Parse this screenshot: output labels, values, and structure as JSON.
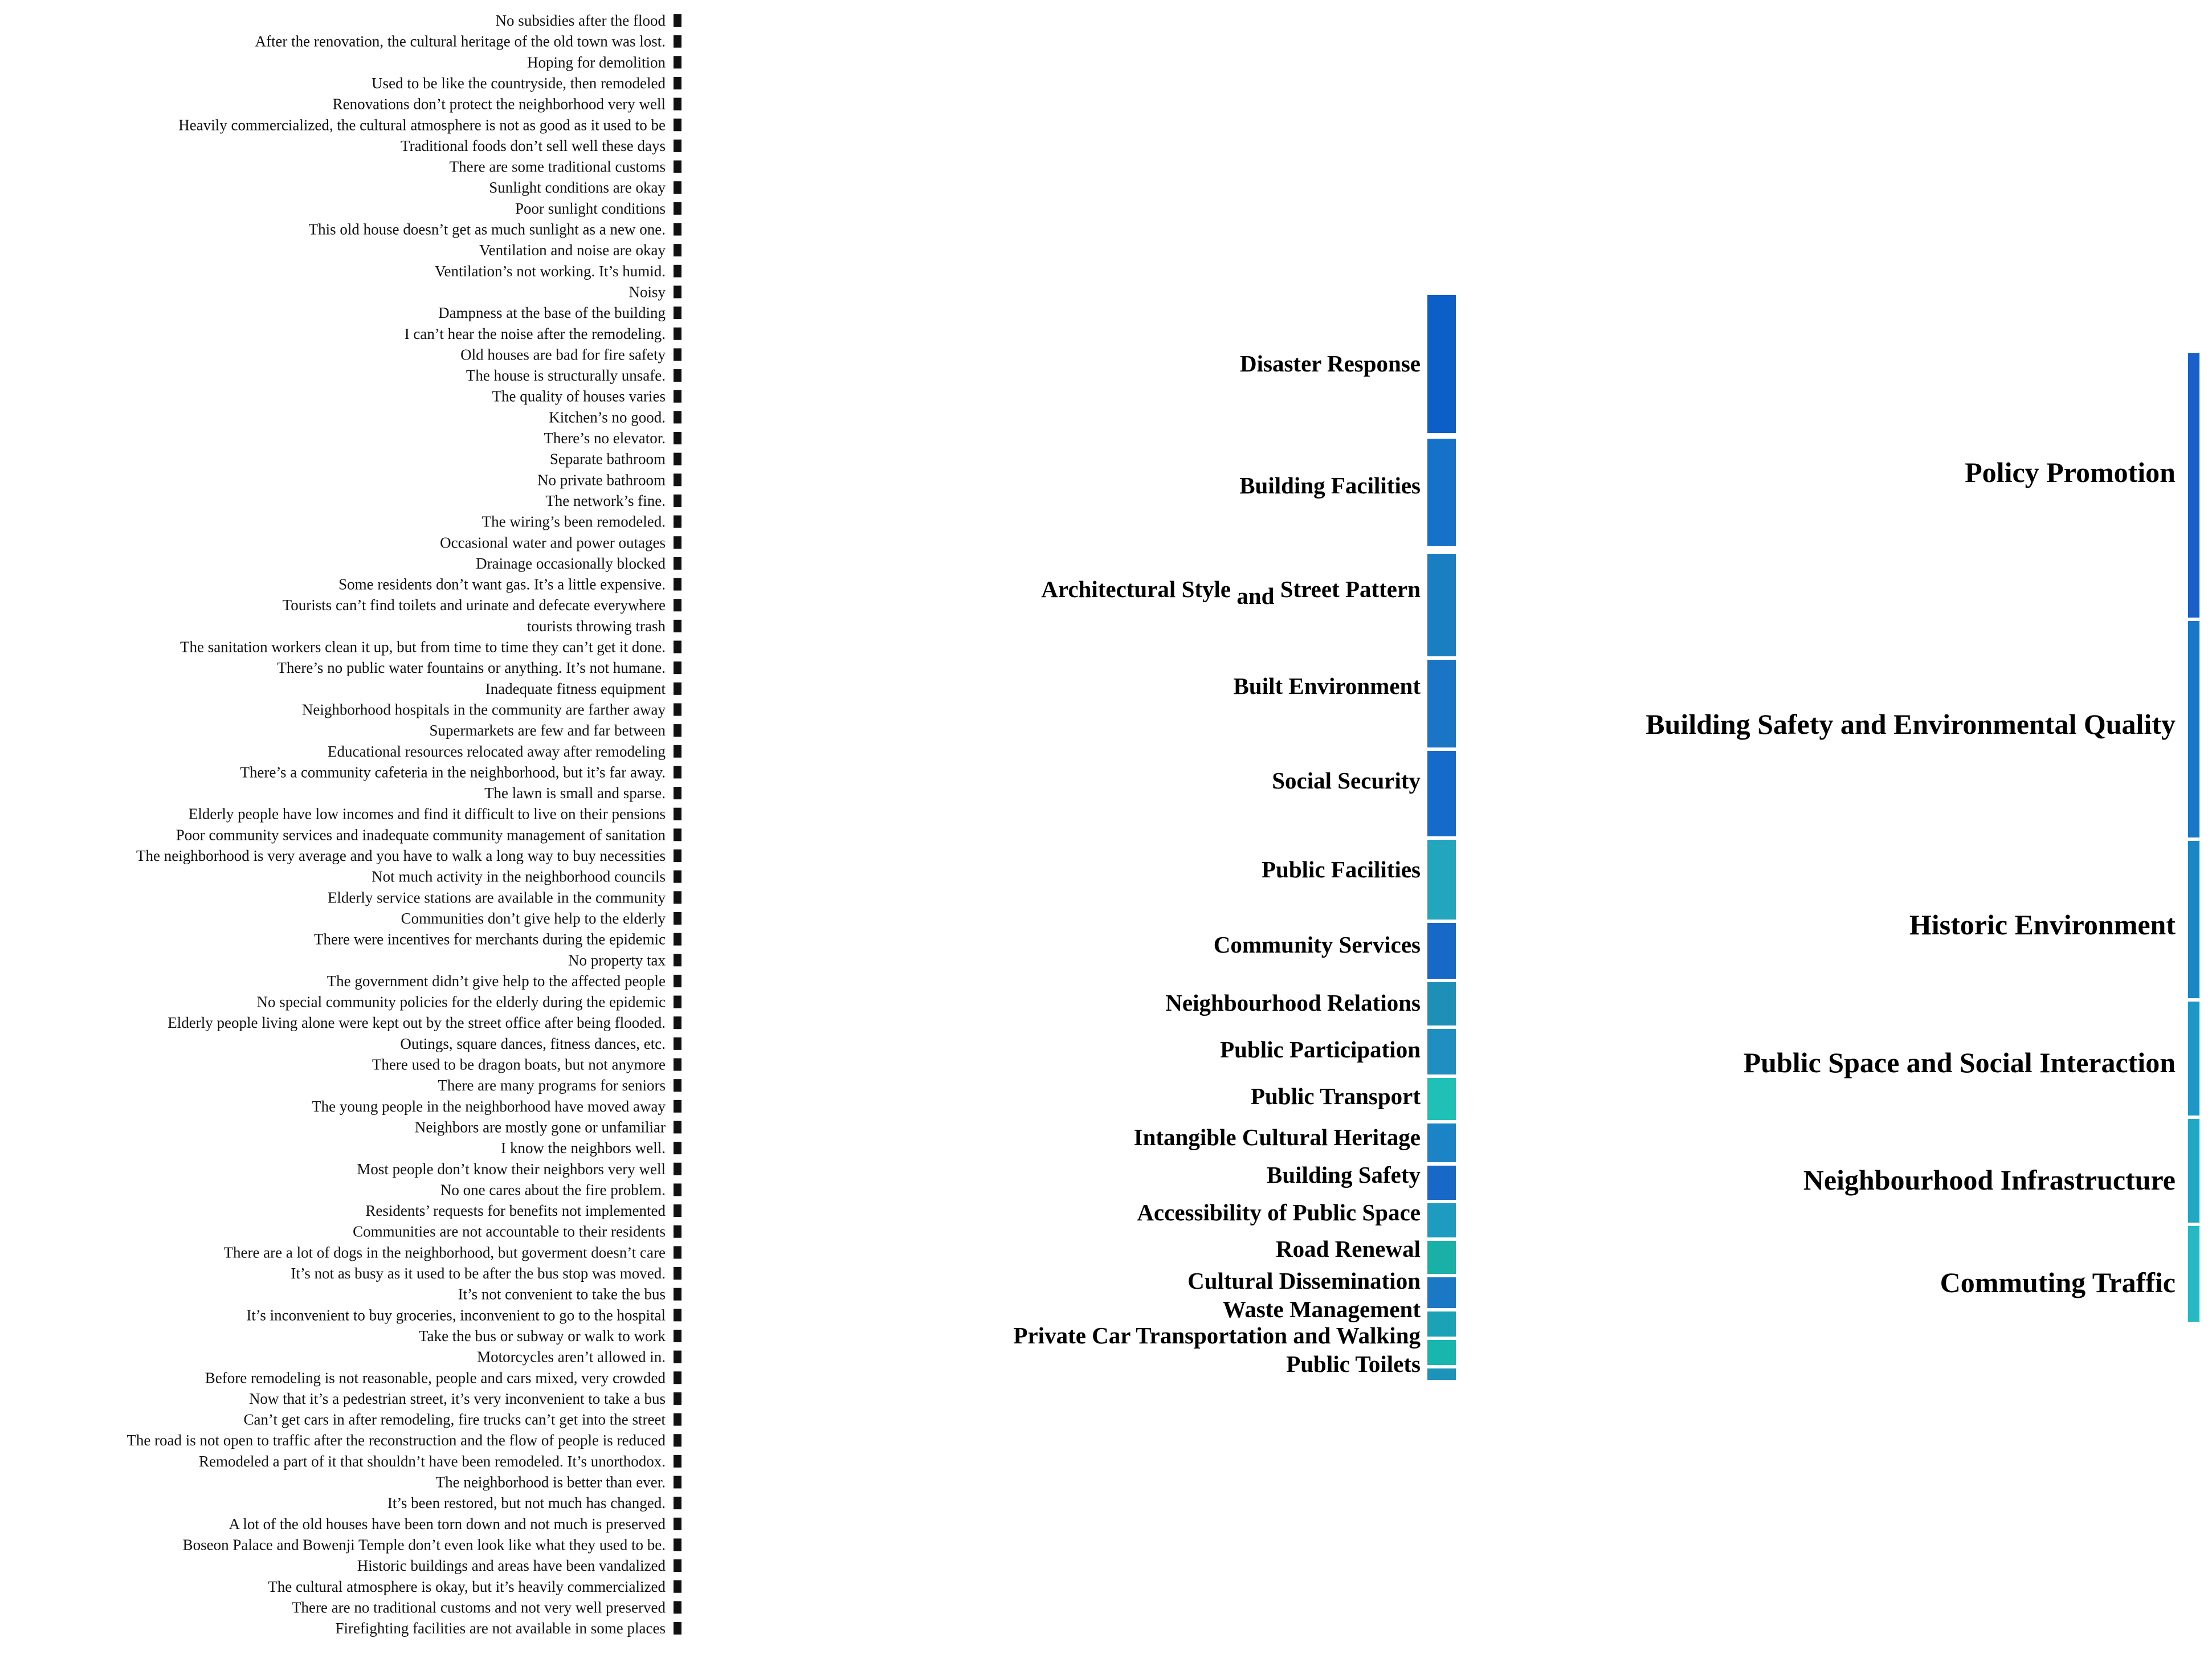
{
  "colors": {
    "blue": "#8faee3",
    "sky": "#8cc7e3",
    "royal": "#1a6fd0",
    "teal": "#32b3c8",
    "aqua": "#5ed6d0",
    "node_dark": "#111111",
    "node_policy": "#1b5fc8",
    "node_building_safety": "#1a77c7",
    "node_historic": "#1b87c2",
    "node_public_space": "#1f97c6",
    "node_infrastructure": "#22a7c3",
    "node_commuting": "#27b8c2"
  },
  "sources": [
    "No subsidies after the flood",
    "After the renovation, the cultural heritage of the old town was lost.",
    "Hoping for demolition",
    "Used to be like the countryside, then remodeled",
    "Renovations don’t protect the neighborhood very well",
    "Heavily commercialized, the cultural atmosphere is not as good as it used to be",
    "Traditional foods don’t sell well these days",
    "There are some traditional customs",
    "Sunlight conditions are okay",
    "Poor sunlight conditions",
    "This old house doesn’t get as much sunlight as a new one.",
    "Ventilation and noise are okay",
    "Ventilation’s not working. It’s humid.",
    "Noisy",
    "Dampness at the base of the building",
    "I can’t hear the noise after the remodeling.",
    "Old houses are bad for fire safety",
    "The house is structurally unsafe.",
    "The quality of houses varies",
    "Kitchen’s no good.",
    "There’s no elevator.",
    "Separate bathroom",
    "No private bathroom",
    "The network’s fine.",
    "The wiring’s been remodeled.",
    "Occasional water and power outages",
    "Drainage occasionally blocked",
    "Some residents don’t want gas. It’s a little expensive.",
    "Tourists can’t find toilets and urinate and defecate everywhere",
    "tourists throwing trash",
    "The sanitation workers clean it up, but from time to time they can’t get it done.",
    "There’s no public water fountains or anything. It’s not humane.",
    "Inadequate fitness equipment",
    "Neighborhood hospitals in the community are farther away",
    "Supermarkets are few and far between",
    "Educational resources relocated away after remodeling",
    "There’s a community cafeteria in the neighborhood, but it’s far away.",
    "The lawn is small and sparse.",
    "Elderly people have low incomes and find it difficult to live on their pensions",
    "Poor community services and inadequate community management of sanitation",
    "The neighborhood is very average and you have to walk a long way to buy necessities",
    "Not much activity in the neighborhood councils",
    "Elderly service stations are available in the community",
    "Communities don’t give help to the elderly",
    "There were incentives for merchants during the epidemic",
    "No property tax",
    "The government didn’t give help to the affected people",
    "No special community policies for the elderly during the epidemic",
    "Elderly people living alone were kept out by the street office after being flooded.",
    "Outings, square dances, fitness dances, etc.",
    "There used to be dragon boats, but not anymore",
    "There are many programs for seniors",
    "The young people in the neighborhood have moved away",
    "Neighbors are mostly gone or unfamiliar",
    "I know the neighbors well.",
    "Most people don’t know their neighbors very well",
    "No one cares about the fire problem.",
    "Residents’ requests for benefits not implemented",
    "Communities are not accountable to their residents",
    "There are a lot of dogs in the neighborhood, but goverment doesn’t care",
    "It’s not as busy as it used to be after the bus stop was moved.",
    "It’s not convenient to take the bus",
    "It’s inconvenient to buy groceries, inconvenient to go to the hospital",
    "Take the bus or subway or walk to work",
    "Motorcycles aren’t allowed in.",
    "Before remodeling is not reasonable, people and cars mixed, very crowded",
    "Now that it’s a pedestrian street, it’s very inconvenient to take a bus",
    "Can’t get cars in after remodeling, fire trucks can’t get into the street",
    "The road is not open to traffic after the reconstruction and the flow of people is reduced",
    "Remodeled a part of it that shouldn’t have been remodeled. It’s unorthodox.",
    "The neighborhood is better than ever.",
    "It’s been restored, but not much has changed.",
    "A lot of the old houses have been torn down and not much is preserved",
    "Boseon Palace and Bowenji Temple don’t even look like what they used to be.",
    "Historic buildings and areas have been vandalized",
    "The cultural atmosphere is okay, but it’s heavily commercialized",
    "There are no traditional customs and not very well preserved",
    "Firefighting facilities are not available in some places"
  ],
  "middles": [
    {
      "label": "Disaster Response",
      "color": "#0d5fc8"
    },
    {
      "label": "Building Facilities",
      "color": "#1672c9"
    },
    {
      "label_main": "Architectural Style",
      "label_and": "and",
      "label_tail": "Street Pattern",
      "color": "#1a7fc2"
    },
    {
      "label": "Built Environment",
      "color": "#1b75c6"
    },
    {
      "label": "Social Security",
      "color": "#156bc9"
    },
    {
      "label": "Public Facilities",
      "color": "#22a6bd"
    },
    {
      "label": "Community Services",
      "color": "#1769c8"
    },
    {
      "label": "Neighbourhood Relations",
      "color": "#1e90b8"
    },
    {
      "label": "Public Participation",
      "color": "#1e8fc0"
    },
    {
      "label": "Public Transport",
      "color": "#1fc1b6"
    },
    {
      "label": "Intangible Cultural Heritage",
      "color": "#1a84c6"
    },
    {
      "label": "Building Safety",
      "color": "#1868c7"
    },
    {
      "label": "Accessibility of Public Space",
      "color": "#1d9bc1"
    },
    {
      "label": "Road Renewal",
      "color": "#19b0a8"
    },
    {
      "label": "Cultural Dissemination",
      "color": "#1a78c4"
    },
    {
      "label": "Waste Management",
      "color": "#1aa3b7"
    },
    {
      "label": "Private Car Transportation and Walking",
      "color": "#17b7ad"
    },
    {
      "label": "Public Toilets",
      "color": "#1c93b9"
    }
  ],
  "destinations": [
    {
      "label": "Policy Promotion",
      "color": "#1b5fc8"
    },
    {
      "label_main": "Building Safety",
      "label_and": "and",
      "label_tail": "Environmental Quality",
      "color": "#1a77c7"
    },
    {
      "label": "Historic Environment",
      "color": "#1b87c2"
    },
    {
      "label": "Public Space and Social Interaction",
      "color": "#1f97c6"
    },
    {
      "label": "Neighbourhood Infrastructure",
      "color": "#22a7c3"
    },
    {
      "label": "Commuting Traffic",
      "color": "#27b8c2"
    }
  ]
}
